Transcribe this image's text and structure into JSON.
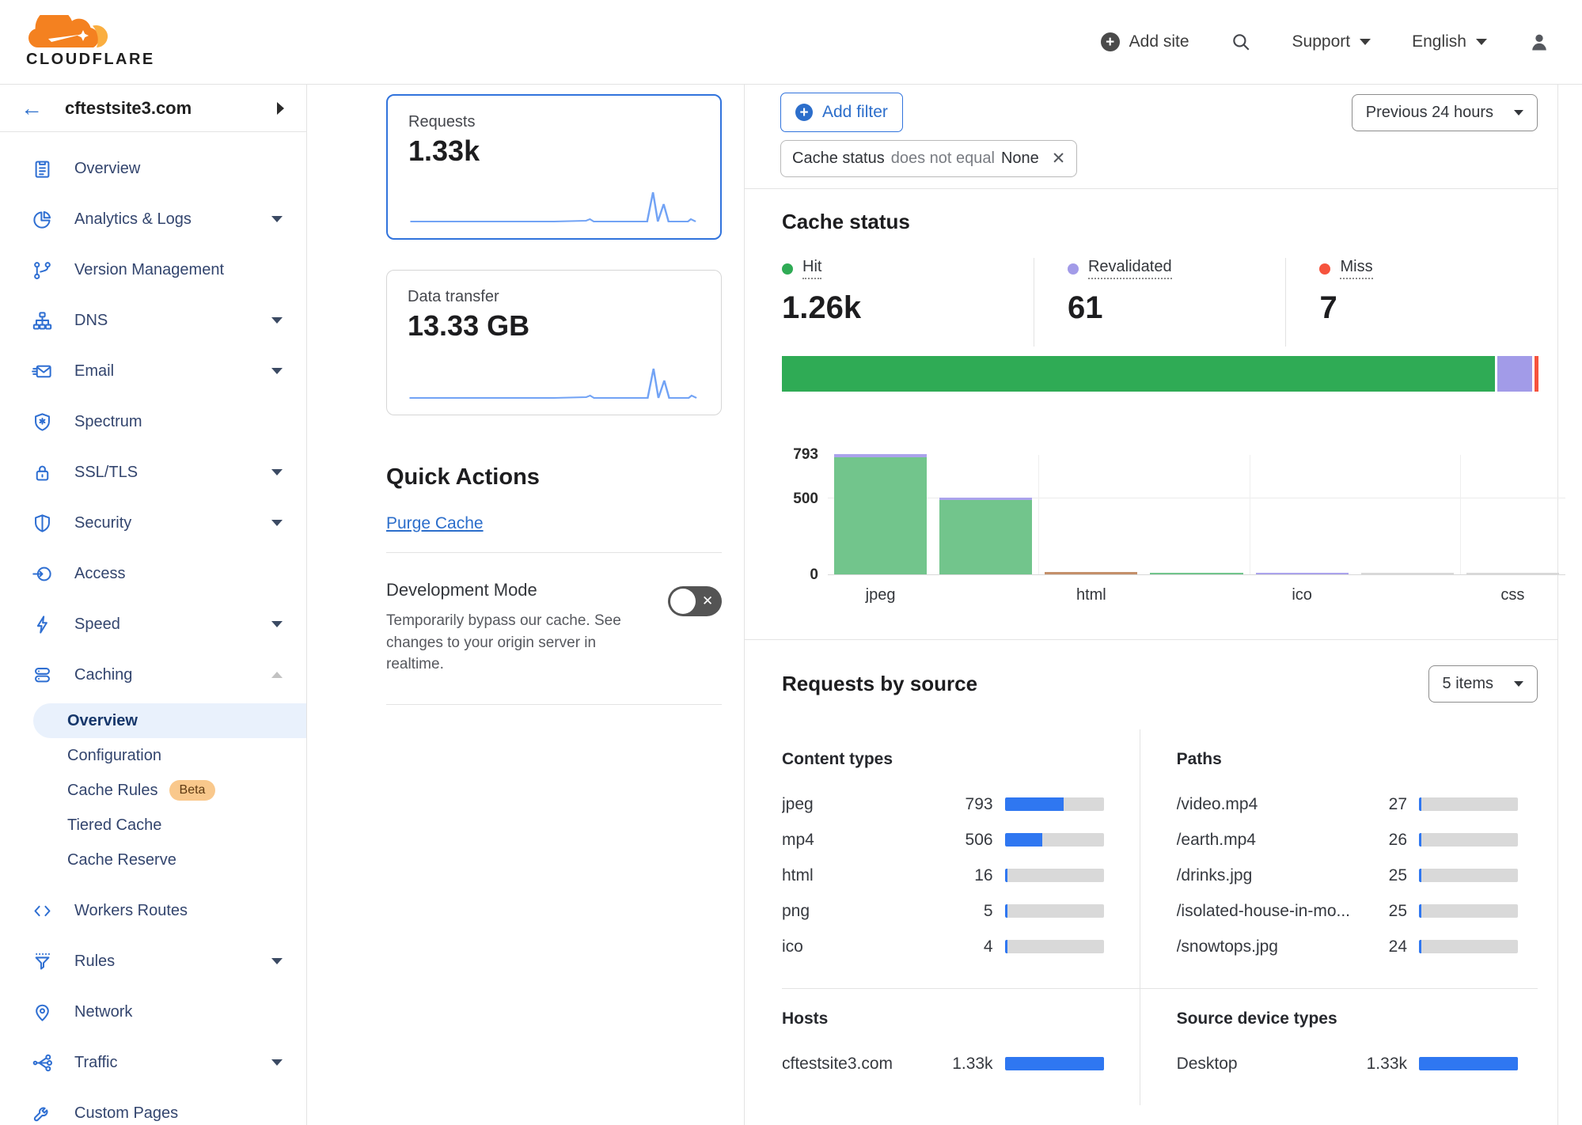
{
  "colors": {
    "accent_blue": "#2c6ecb",
    "icon_blue": "#2f6fd2",
    "selected_border": "#3173dc",
    "bar_blue": "#2f77f1",
    "hit": "#2fab55",
    "revalidated": "#a29be8",
    "miss": "#f6533d",
    "hit_fill": "#72c58c",
    "revalidated_fill": "#aba3ec",
    "miss_fill": "#c4906b",
    "other_fill": "#d8d8d8",
    "beta_badge_bg": "#f9c88c"
  },
  "header": {
    "brand": "CLOUDFLARE",
    "add_site": "Add site",
    "support": "Support",
    "language": "English"
  },
  "sidebar": {
    "site": "cftestsite3.com",
    "items": [
      {
        "label": "Overview",
        "icon": "overview"
      },
      {
        "label": "Analytics & Logs",
        "icon": "analytics",
        "expandable": true
      },
      {
        "label": "Version Management",
        "icon": "version"
      },
      {
        "label": "DNS",
        "icon": "dns",
        "expandable": true
      },
      {
        "label": "Email",
        "icon": "email",
        "expandable": true
      },
      {
        "label": "Spectrum",
        "icon": "spectrum"
      },
      {
        "label": "SSL/TLS",
        "icon": "ssl",
        "expandable": true
      },
      {
        "label": "Security",
        "icon": "security",
        "expandable": true
      },
      {
        "label": "Access",
        "icon": "access"
      },
      {
        "label": "Speed",
        "icon": "speed",
        "expandable": true
      },
      {
        "label": "Caching",
        "icon": "caching",
        "expandable": true,
        "expanded": true,
        "children": [
          {
            "label": "Overview",
            "active": true
          },
          {
            "label": "Configuration"
          },
          {
            "label": "Cache Rules",
            "badge": "Beta"
          },
          {
            "label": "Tiered Cache"
          },
          {
            "label": "Cache Reserve"
          }
        ]
      },
      {
        "label": "Workers Routes",
        "icon": "workers"
      },
      {
        "label": "Rules",
        "icon": "rules",
        "expandable": true
      },
      {
        "label": "Network",
        "icon": "network"
      },
      {
        "label": "Traffic",
        "icon": "traffic",
        "expandable": true
      },
      {
        "label": "Custom Pages",
        "icon": "custom"
      }
    ]
  },
  "metrics": {
    "requests": {
      "label": "Requests",
      "value": "1.33k"
    },
    "data_transfer": {
      "label": "Data transfer",
      "value": "13.33 GB"
    }
  },
  "quick_actions": {
    "title": "Quick Actions",
    "purge_cache": "Purge Cache",
    "development_mode": {
      "title": "Development Mode",
      "description": "Temporarily bypass our cache. See changes to your origin server in realtime.",
      "state": "off"
    }
  },
  "filters": {
    "add_filter": "Add filter",
    "chip": {
      "field": "Cache status",
      "operator": "does not equal",
      "value": "None"
    },
    "time_range": "Previous 24 hours"
  },
  "cache_status": {
    "title": "Cache status",
    "stats": [
      {
        "label": "Hit",
        "value": "1.26k",
        "color_key": "hit"
      },
      {
        "label": "Revalidated",
        "value": "61",
        "color_key": "revalidated"
      },
      {
        "label": "Miss",
        "value": "7",
        "color_key": "miss"
      }
    ]
  },
  "chart_data": [
    {
      "type": "stacked-bar",
      "title": "Cache status distribution",
      "series": [
        {
          "name": "Hit",
          "value": 1260,
          "color_key": "hit"
        },
        {
          "name": "Revalidated",
          "value": 61,
          "color_key": "revalidated"
        },
        {
          "name": "Miss",
          "value": 7,
          "color_key": "miss"
        }
      ],
      "total": 1328
    },
    {
      "type": "bar",
      "title": "Cache status by content type",
      "ylim": [
        0,
        793
      ],
      "yticks": [
        793,
        500,
        0
      ],
      "gridline_y": 500,
      "grid": true,
      "categories": [
        {
          "label": "jpeg",
          "show_label": true,
          "segments": [
            {
              "color_key": "hit_fill",
              "value": 770
            },
            {
              "color_key": "revalidated_fill",
              "value": 23
            }
          ]
        },
        {
          "label": "",
          "show_label": false,
          "segments": [
            {
              "color_key": "hit_fill",
              "value": 488
            },
            {
              "color_key": "revalidated_fill",
              "value": 18
            }
          ]
        },
        {
          "label": "html",
          "show_label": true,
          "segments": [
            {
              "color_key": "miss_fill",
              "value": 16
            }
          ]
        },
        {
          "label": "",
          "show_label": false,
          "segments": [
            {
              "color_key": "hit_fill",
              "value": 5
            }
          ]
        },
        {
          "label": "ico",
          "show_label": true,
          "segments": [
            {
              "color_key": "revalidated_fill",
              "value": 4
            }
          ]
        },
        {
          "label": "",
          "show_label": false,
          "segments": [
            {
              "color_key": "other_fill",
              "value": 2
            }
          ]
        },
        {
          "label": "css",
          "show_label": true,
          "segments": [
            {
              "color_key": "other_fill",
              "value": 2
            }
          ]
        }
      ]
    }
  ],
  "requests_by_source": {
    "title": "Requests by source",
    "items_select": "5 items",
    "max_value": 1330,
    "blocks": [
      {
        "title": "Content types",
        "rows": [
          {
            "label": "jpeg",
            "display": "793",
            "value": 793
          },
          {
            "label": "mp4",
            "display": "506",
            "value": 506
          },
          {
            "label": "html",
            "display": "16",
            "value": 16
          },
          {
            "label": "png",
            "display": "5",
            "value": 5
          },
          {
            "label": "ico",
            "display": "4",
            "value": 4
          }
        ]
      },
      {
        "title": "Paths",
        "rows": [
          {
            "label": "/video.mp4",
            "display": "27",
            "value": 27
          },
          {
            "label": "/earth.mp4",
            "display": "26",
            "value": 26
          },
          {
            "label": "/drinks.jpg",
            "display": "25",
            "value": 25
          },
          {
            "label": "/isolated-house-in-mo...",
            "display": "25",
            "value": 25
          },
          {
            "label": "/snowtops.jpg",
            "display": "24",
            "value": 24
          }
        ]
      },
      {
        "title": "Hosts",
        "rows": [
          {
            "label": "cftestsite3.com",
            "display": "1.33k",
            "value": 1330
          }
        ]
      },
      {
        "title": "Source device types",
        "rows": [
          {
            "label": "Desktop",
            "display": "1.33k",
            "value": 1330
          }
        ]
      }
    ]
  }
}
